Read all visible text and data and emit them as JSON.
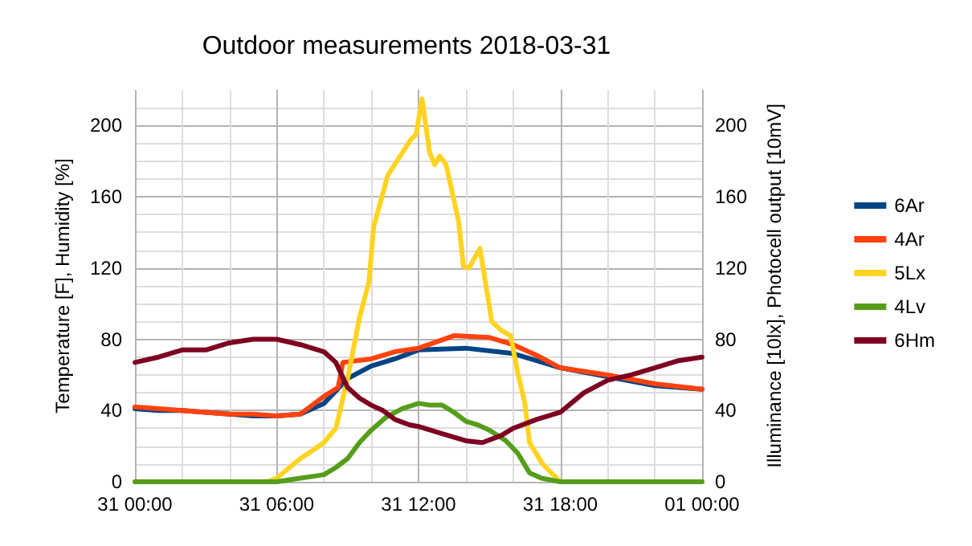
{
  "chart_data": {
    "type": "line",
    "title": "Outdoor measurements 2018-03-31",
    "ylabel": "Temperature [F], Humidity [%]",
    "y2label": "Illuminance [10lx], Photocell output [10mV]",
    "xlim": [
      "2018-03-31T00:00",
      "2018-04-01T00:00"
    ],
    "xticks": [
      {
        "value": "2018-03-31T00:00",
        "label": "31 00:00"
      },
      {
        "value": "2018-03-31T06:00",
        "label": "31 06:00"
      },
      {
        "value": "2018-03-31T12:00",
        "label": "31 12:00"
      },
      {
        "value": "2018-03-31T18:00",
        "label": "31 18:00"
      },
      {
        "value": "2018-04-01T00:00",
        "label": "01 00:00"
      }
    ],
    "ylim": [
      0,
      220
    ],
    "yticks": [
      0,
      40,
      80,
      120,
      160,
      200
    ],
    "y2lim": [
      0,
      220
    ],
    "y2ticks": [
      0,
      40,
      80,
      120,
      160,
      200
    ],
    "grid": true,
    "legend": "right",
    "marker": "none",
    "line_style": "solid",
    "series": [
      {
        "name": "6Ar",
        "color": "#004586",
        "x": [
          "2018-03-31T00:00",
          "2018-03-31T01:00",
          "2018-03-31T02:00",
          "2018-03-31T03:00",
          "2018-03-31T04:00",
          "2018-03-31T05:00",
          "2018-03-31T06:00",
          "2018-03-31T07:00",
          "2018-03-31T08:00",
          "2018-03-31T09:00",
          "2018-03-31T10:00",
          "2018-03-31T11:00",
          "2018-03-31T12:00",
          "2018-03-31T14:00",
          "2018-03-31T16:00",
          "2018-03-31T17:00",
          "2018-03-31T18:00",
          "2018-03-31T20:00",
          "2018-03-31T22:00",
          "2018-04-01T00:00"
        ],
        "values": [
          41,
          40,
          40,
          39,
          38,
          37,
          37,
          38,
          44,
          58,
          65,
          69,
          74,
          75,
          72,
          68,
          64,
          59,
          54,
          52
        ]
      },
      {
        "name": "4Ar",
        "color": "#ff420e",
        "x": [
          "2018-03-31T00:00",
          "2018-03-31T01:00",
          "2018-03-31T02:00",
          "2018-03-31T03:00",
          "2018-03-31T04:00",
          "2018-03-31T05:00",
          "2018-03-31T06:00",
          "2018-03-31T07:00",
          "2018-03-31T08:00",
          "2018-03-31T08:36",
          "2018-03-31T08:48",
          "2018-03-31T10:00",
          "2018-03-31T11:00",
          "2018-03-31T12:00",
          "2018-03-31T13:30",
          "2018-03-31T15:00",
          "2018-03-31T16:00",
          "2018-03-31T17:00",
          "2018-03-31T18:00",
          "2018-03-31T20:00",
          "2018-03-31T22:00",
          "2018-04-01T00:00"
        ],
        "values": [
          42,
          41,
          40,
          39,
          38,
          38,
          37,
          38,
          48,
          53,
          67,
          69,
          73,
          75,
          82,
          81,
          77,
          71,
          64,
          60,
          55,
          52
        ]
      },
      {
        "name": "5Lx",
        "color": "#ffd320",
        "x": [
          "2018-03-31T00:00",
          "2018-03-31T05:36",
          "2018-03-31T06:00",
          "2018-03-31T07:00",
          "2018-03-31T08:00",
          "2018-03-31T08:30",
          "2018-03-31T09:00",
          "2018-03-31T09:30",
          "2018-03-31T09:54",
          "2018-03-31T10:06",
          "2018-03-31T10:42",
          "2018-03-31T11:40",
          "2018-03-31T11:54",
          "2018-03-31T12:09",
          "2018-03-31T12:28",
          "2018-03-31T12:41",
          "2018-03-31T12:54",
          "2018-03-31T13:10",
          "2018-03-31T13:42",
          "2018-03-31T13:54",
          "2018-03-31T14:08",
          "2018-03-31T14:36",
          "2018-03-31T15:06",
          "2018-03-31T15:30",
          "2018-03-31T15:54",
          "2018-03-31T16:12",
          "2018-03-31T16:30",
          "2018-03-31T16:42",
          "2018-03-31T17:15",
          "2018-03-31T18:00",
          "2018-04-01T00:00"
        ],
        "values": [
          0,
          0,
          2,
          13,
          22,
          30,
          58,
          92,
          112,
          143,
          172,
          192,
          195,
          215,
          185,
          178,
          183,
          178,
          146,
          121,
          120,
          131,
          90,
          85,
          82,
          61,
          44,
          22,
          10,
          0,
          0
        ]
      },
      {
        "name": "4Lv",
        "color": "#579d1c",
        "x": [
          "2018-03-31T00:00",
          "2018-03-31T06:00",
          "2018-03-31T07:00",
          "2018-03-31T07:30",
          "2018-03-31T08:00",
          "2018-03-31T08:30",
          "2018-03-31T09:00",
          "2018-03-31T09:30",
          "2018-03-31T10:00",
          "2018-03-31T10:36",
          "2018-03-31T11:18",
          "2018-03-31T12:00",
          "2018-03-31T12:30",
          "2018-03-31T13:00",
          "2018-03-31T13:30",
          "2018-03-31T14:00",
          "2018-03-31T14:30",
          "2018-03-31T15:00",
          "2018-03-31T15:42",
          "2018-03-31T16:12",
          "2018-03-31T16:42",
          "2018-03-31T17:12",
          "2018-03-31T18:00",
          "2018-04-01T00:00"
        ],
        "values": [
          0,
          0,
          2,
          3,
          4,
          8,
          13,
          22,
          29,
          36,
          41,
          44,
          43,
          43,
          39,
          34,
          32,
          29,
          23,
          16,
          5,
          2,
          0,
          0
        ]
      },
      {
        "name": "6Hm",
        "color": "#7e0021",
        "x": [
          "2018-03-31T00:00",
          "2018-03-31T01:00",
          "2018-03-31T02:00",
          "2018-03-31T03:00",
          "2018-03-31T04:00",
          "2018-03-31T05:00",
          "2018-03-31T06:00",
          "2018-03-31T07:00",
          "2018-03-31T07:30",
          "2018-03-31T08:00",
          "2018-03-31T08:30",
          "2018-03-31T09:00",
          "2018-03-31T09:30",
          "2018-03-31T10:00",
          "2018-03-31T10:30",
          "2018-03-31T11:00",
          "2018-03-31T11:36",
          "2018-03-31T12:00",
          "2018-03-31T13:00",
          "2018-03-31T14:00",
          "2018-03-31T14:42",
          "2018-03-31T15:30",
          "2018-03-31T16:00",
          "2018-03-31T17:00",
          "2018-03-31T18:00",
          "2018-03-31T19:00",
          "2018-03-31T20:00",
          "2018-03-31T21:00",
          "2018-03-31T22:00",
          "2018-03-31T23:00",
          "2018-04-01T00:00"
        ],
        "values": [
          67,
          70,
          74,
          74,
          78,
          80,
          80,
          77,
          75,
          73,
          67,
          53,
          47,
          43,
          40,
          35,
          32,
          31,
          27,
          23,
          22,
          26,
          30,
          35,
          39,
          50,
          57,
          60,
          64,
          68,
          70
        ]
      }
    ]
  }
}
